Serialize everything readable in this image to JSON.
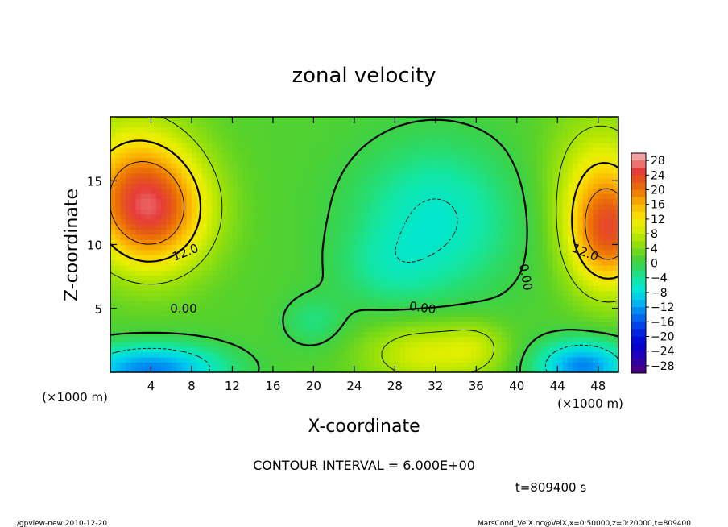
{
  "chart_data": {
    "type": "heatmap",
    "title": "zonal velocity",
    "xlabel": "X-coordinate",
    "ylabel": "Z-coordinate",
    "x_unit_label": "(×1000 m)",
    "y_unit_label": "(×1000 m)",
    "xlim": [
      0,
      50
    ],
    "ylim": [
      0,
      20
    ],
    "x_ticks": [
      "4",
      "8",
      "12",
      "16",
      "20",
      "24",
      "28",
      "32",
      "36",
      "40",
      "44",
      "48"
    ],
    "y_ticks": [
      "5",
      "10",
      "15"
    ],
    "colorbar_labels": [
      "28",
      "24",
      "20",
      "16",
      "12",
      "8",
      "4",
      "0",
      "−4",
      "−8",
      "−12",
      "−16",
      "−20",
      "−24",
      "−28"
    ],
    "colorbar_range": [
      -30,
      30
    ],
    "contour_labels": [
      "12.0",
      "0.00",
      "0.00",
      "12.0",
      "0.00"
    ],
    "contour_interval_text": "CONTOUR INTERVAL = 6.000E+00",
    "time_text": "t=809400 s",
    "field_description": "regions (x,z in km): max ~20 near x=4,z=12 and x=49,z=10; min ~-12 near x=4,z=1 and x=46,z=1; ~-6 plateau near x=32,z=12"
  },
  "footer": {
    "left": "./gpview-new   2010-12-20",
    "right": "MarsCond_VelX.nc@VelX,x=0:50000,z=0:20000,t=809400"
  }
}
